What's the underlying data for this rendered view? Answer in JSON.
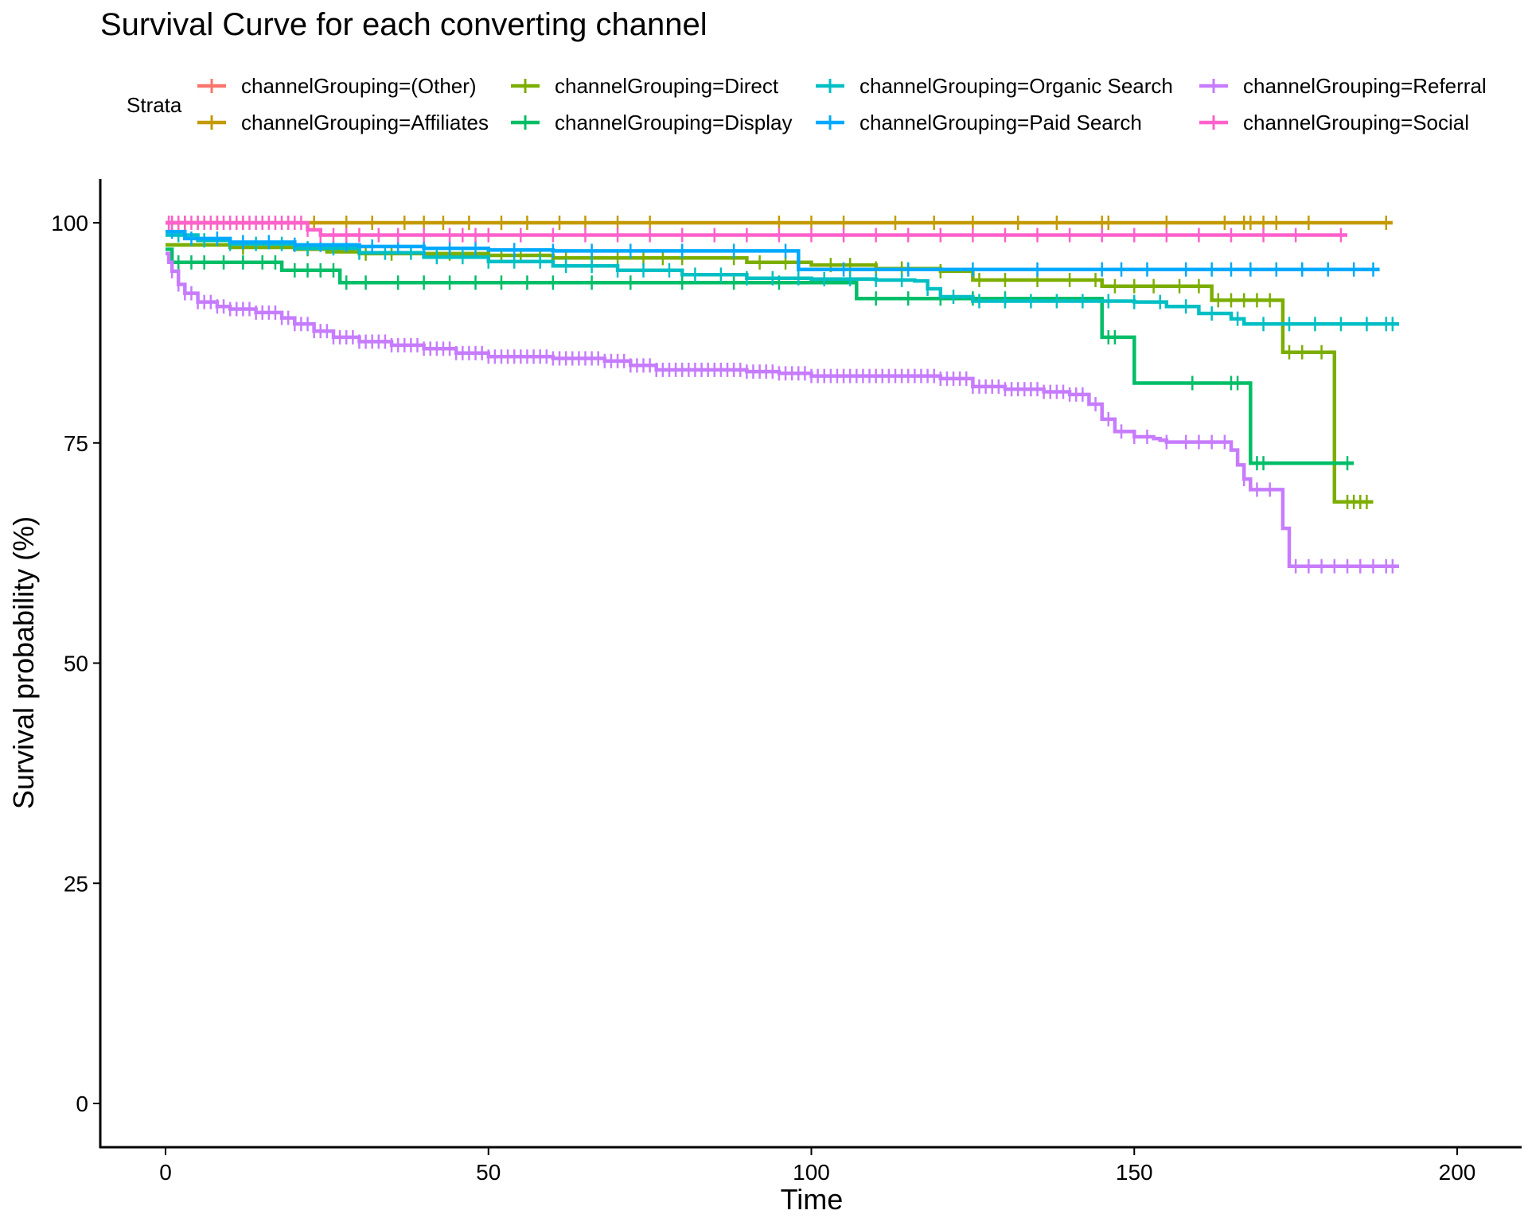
{
  "chart_data": {
    "type": "line",
    "title": "Survival Curve for each converting channel",
    "xlabel": "Time",
    "ylabel": "Survival probability (%)",
    "xlim": [
      -10,
      210
    ],
    "ylim": [
      -5,
      105
    ],
    "x_ticks": [
      0,
      50,
      100,
      150,
      200
    ],
    "y_ticks": [
      0,
      25,
      50,
      75,
      100
    ],
    "grid": false,
    "legend": {
      "title": "Strata",
      "placement": "top"
    },
    "series": [
      {
        "name": "channelGrouping=(Other)",
        "color": "#F8766D",
        "points": [
          [
            0,
            100
          ],
          [
            8,
            100
          ]
        ],
        "censor": [
          1,
          3,
          5
        ]
      },
      {
        "name": "channelGrouping=Affiliates",
        "color": "#C49A00",
        "points": [
          [
            0,
            100
          ],
          [
            190,
            100
          ]
        ],
        "censor": [
          3,
          8,
          12,
          19,
          23,
          28,
          32,
          37,
          40,
          43,
          47,
          52,
          56,
          61,
          65,
          70,
          75,
          95,
          100,
          105,
          113,
          119,
          125,
          132,
          138,
          145,
          146,
          155,
          164,
          167,
          168,
          170,
          172,
          177,
          189
        ]
      },
      {
        "name": "channelGrouping=Direct",
        "color": "#7CAE00",
        "points": [
          [
            0,
            97.5
          ],
          [
            5,
            97.5
          ],
          [
            10,
            97.2
          ],
          [
            20,
            97
          ],
          [
            25,
            96.7
          ],
          [
            30,
            96.5
          ],
          [
            50,
            96.3
          ],
          [
            60,
            96
          ],
          [
            90,
            95.5
          ],
          [
            100,
            95.2
          ],
          [
            110,
            94.8
          ],
          [
            120,
            94.5
          ],
          [
            125,
            93.5
          ],
          [
            145,
            92.8
          ],
          [
            162,
            91.2
          ],
          [
            173,
            85.3
          ],
          [
            181,
            85.3
          ],
          [
            181,
            68.3
          ],
          [
            187,
            68.3
          ]
        ],
        "censor": [
          12,
          22,
          31,
          35,
          44,
          52,
          55,
          58,
          62,
          66,
          70,
          74,
          77,
          80,
          88,
          92,
          96,
          98,
          103,
          106,
          110,
          114,
          120,
          126,
          130,
          135,
          140,
          144,
          147,
          150,
          153,
          157,
          160,
          163,
          165,
          167,
          169,
          171,
          174,
          176,
          179,
          183,
          184,
          185,
          186
        ]
      },
      {
        "name": "channelGrouping=Display",
        "color": "#00BE67",
        "points": [
          [
            0,
            97
          ],
          [
            1,
            95.5
          ],
          [
            18,
            95.5
          ],
          [
            18,
            94.6
          ],
          [
            27,
            94.6
          ],
          [
            27,
            93.2
          ],
          [
            107,
            93.2
          ],
          [
            107,
            91.4
          ],
          [
            145,
            91.4
          ],
          [
            145,
            87
          ],
          [
            150,
            87
          ],
          [
            150,
            81.8
          ],
          [
            168,
            81.8
          ],
          [
            168,
            72.7
          ],
          [
            184,
            72.7
          ]
        ],
        "censor": [
          2,
          4,
          6,
          9,
          12,
          15,
          17,
          20,
          22,
          24,
          26,
          28,
          31,
          36,
          40,
          44,
          48,
          52,
          56,
          60,
          66,
          72,
          80,
          88,
          95,
          110,
          115,
          120,
          125,
          130,
          146,
          147,
          159,
          165,
          166,
          169,
          170,
          183
        ]
      },
      {
        "name": "channelGrouping=Organic Search",
        "color": "#00BFC4",
        "points": [
          [
            0,
            98.6
          ],
          [
            5,
            98
          ],
          [
            10,
            97.6
          ],
          [
            20,
            97.1
          ],
          [
            30,
            96.6
          ],
          [
            40,
            96.1
          ],
          [
            50,
            95.6
          ],
          [
            60,
            95.1
          ],
          [
            70,
            94.6
          ],
          [
            80,
            94.1
          ],
          [
            90,
            93.7
          ],
          [
            100,
            93.6
          ],
          [
            110,
            93.5
          ],
          [
            116,
            93.4
          ],
          [
            118,
            92.5
          ],
          [
            120,
            91.6
          ],
          [
            125,
            91.1
          ],
          [
            150,
            91
          ],
          [
            155,
            90.5
          ],
          [
            160,
            89.7
          ],
          [
            165,
            89.1
          ],
          [
            167,
            88.5
          ],
          [
            191,
            88.5
          ]
        ],
        "censor": [
          2,
          6,
          10,
          14,
          18,
          22,
          26,
          30,
          34,
          38,
          42,
          46,
          50,
          54,
          58,
          62,
          66,
          70,
          74,
          78,
          82,
          86,
          90,
          94,
          98,
          102,
          106,
          110,
          114,
          118,
          122,
          126,
          130,
          134,
          138,
          142,
          146,
          150,
          154,
          158,
          162,
          166,
          170,
          174,
          178,
          182,
          186,
          189,
          190
        ]
      },
      {
        "name": "channelGrouping=Paid Search",
        "color": "#00A9FF",
        "points": [
          [
            0,
            99
          ],
          [
            3,
            98.2
          ],
          [
            10,
            97.8
          ],
          [
            20,
            97.5
          ],
          [
            30,
            97.3
          ],
          [
            40,
            97.1
          ],
          [
            50,
            96.9
          ],
          [
            60,
            96.8
          ],
          [
            98,
            96.7
          ],
          [
            98,
            94.7
          ],
          [
            188,
            94.7
          ]
        ],
        "censor": [
          1,
          4,
          8,
          12,
          16,
          20,
          24,
          28,
          32,
          36,
          40,
          44,
          48,
          54,
          60,
          66,
          72,
          80,
          88,
          96,
          105,
          115,
          125,
          135,
          145,
          148,
          152,
          158,
          162,
          165,
          168,
          172,
          176,
          180,
          184,
          187
        ]
      },
      {
        "name": "channelGrouping=Referral",
        "color": "#C77CFF",
        "points": [
          [
            0,
            96.5
          ],
          [
            0.5,
            95.5
          ],
          [
            1,
            94.5
          ],
          [
            2,
            93
          ],
          [
            3,
            92
          ],
          [
            5,
            91
          ],
          [
            8,
            90.5
          ],
          [
            10,
            90.2
          ],
          [
            14,
            89.8
          ],
          [
            18,
            89.2
          ],
          [
            20,
            88.5
          ],
          [
            23,
            87.7
          ],
          [
            26,
            87
          ],
          [
            30,
            86.5
          ],
          [
            35,
            86.1
          ],
          [
            40,
            85.7
          ],
          [
            45,
            85.2
          ],
          [
            50,
            84.8
          ],
          [
            60,
            84.6
          ],
          [
            68,
            84.3
          ],
          [
            72,
            83.8
          ],
          [
            76,
            83.3
          ],
          [
            90,
            83.1
          ],
          [
            95,
            82.9
          ],
          [
            100,
            82.6
          ],
          [
            120,
            82.3
          ],
          [
            125,
            81.4
          ],
          [
            130,
            81.1
          ],
          [
            136,
            80.8
          ],
          [
            140,
            80.5
          ],
          [
            143,
            79.4
          ],
          [
            145,
            77.7
          ],
          [
            147,
            76.3
          ],
          [
            150,
            75.7
          ],
          [
            153,
            75.5
          ],
          [
            154,
            75.3
          ],
          [
            155,
            75.1
          ],
          [
            163,
            75.1
          ],
          [
            165,
            74.2
          ],
          [
            166,
            72.5
          ],
          [
            167,
            70.9
          ],
          [
            168,
            69.7
          ],
          [
            172,
            69.7
          ],
          [
            173,
            65.3
          ],
          [
            174,
            61
          ],
          [
            191,
            61
          ]
        ],
        "censor": [
          1,
          2,
          3,
          4,
          5,
          6,
          7,
          8,
          9,
          10,
          11,
          12,
          13,
          14,
          15,
          16,
          17,
          18,
          19,
          20,
          21,
          22,
          23,
          24,
          25,
          26,
          27,
          28,
          29,
          30,
          31,
          32,
          33,
          34,
          35,
          36,
          37,
          38,
          39,
          40,
          41,
          42,
          43,
          44,
          45,
          46,
          47,
          48,
          49,
          50,
          51,
          52,
          53,
          54,
          55,
          56,
          57,
          58,
          59,
          60,
          61,
          62,
          63,
          64,
          65,
          66,
          67,
          68,
          69,
          70,
          71,
          72,
          73,
          74,
          75,
          76,
          77,
          78,
          79,
          80,
          81,
          82,
          83,
          84,
          85,
          86,
          87,
          88,
          89,
          90,
          91,
          92,
          93,
          94,
          95,
          96,
          97,
          98,
          99,
          100,
          101,
          102,
          103,
          104,
          105,
          106,
          107,
          108,
          109,
          110,
          111,
          112,
          113,
          114,
          115,
          116,
          117,
          118,
          119,
          120,
          121,
          122,
          123,
          124,
          125,
          126,
          127,
          128,
          129,
          130,
          131,
          132,
          133,
          134,
          135,
          136,
          137,
          138,
          139,
          140,
          141,
          142,
          144,
          146,
          148,
          150,
          152,
          155,
          158,
          160,
          162,
          164,
          167,
          169,
          171,
          175,
          177,
          179,
          181,
          183,
          185,
          187,
          189,
          190
        ]
      },
      {
        "name": "channelGrouping=Social",
        "color": "#FF61CC",
        "points": [
          [
            0,
            100
          ],
          [
            22,
            100
          ],
          [
            22,
            99.2
          ],
          [
            24,
            98.6
          ],
          [
            183,
            98.6
          ]
        ],
        "censor": [
          0.5,
          1,
          2,
          3,
          4,
          5,
          6,
          7,
          8,
          9,
          10,
          11,
          12,
          13,
          14,
          15,
          16,
          17,
          18,
          19,
          20,
          21,
          22,
          24,
          26,
          28,
          30,
          33,
          36,
          40,
          44,
          46,
          48,
          50,
          55,
          60,
          65,
          70,
          75,
          80,
          85,
          90,
          95,
          100,
          105,
          110,
          115,
          120,
          125,
          130,
          135,
          140,
          145,
          150,
          155,
          160,
          165,
          170,
          175,
          182
        ]
      }
    ]
  }
}
